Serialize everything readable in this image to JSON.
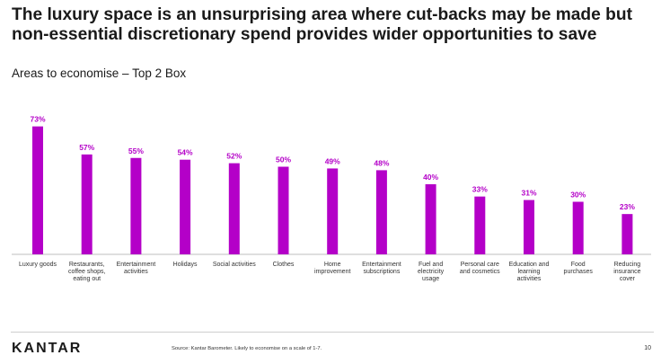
{
  "slide": {
    "title": "The luxury space is an unsurprising area where cut-backs may be made but non-essential discretionary spend provides wider opportunities to save",
    "subtitle": "Areas to economise – Top 2 Box",
    "source": "Source: Kantar Barometer. Likely to economise on a scale of 1-7.",
    "page_number": "10",
    "logo_text": "KANTAR"
  },
  "chart_data": {
    "type": "bar",
    "title": "Areas to economise – Top 2 Box",
    "xlabel": "",
    "ylabel": "",
    "ylim": [
      0,
      80
    ],
    "grid": false,
    "legend": "none",
    "bar_color": "#b400c8",
    "categories": [
      [
        "Luxury goods"
      ],
      [
        "Restaurants,",
        "coffee shops,",
        "eating out"
      ],
      [
        "Entertainment",
        "activities"
      ],
      [
        "Holidays"
      ],
      [
        "Social activities"
      ],
      [
        "Clothes"
      ],
      [
        "Home",
        "improvement"
      ],
      [
        "Entertainment",
        "subscriptions"
      ],
      [
        "Fuel and",
        "electricity",
        "usage"
      ],
      [
        "Personal care",
        "and cosmetics"
      ],
      [
        "Education and",
        "learning",
        "activities"
      ],
      [
        "Food",
        "purchases"
      ],
      [
        "Reducing",
        "insurance",
        "cover"
      ]
    ],
    "values": [
      73,
      57,
      55,
      54,
      52,
      50,
      49,
      48,
      40,
      33,
      31,
      30,
      23
    ],
    "data_labels": [
      "73%",
      "57%",
      "55%",
      "54%",
      "52%",
      "50%",
      "49%",
      "48%",
      "40%",
      "33%",
      "31%",
      "30%",
      "23%"
    ]
  }
}
